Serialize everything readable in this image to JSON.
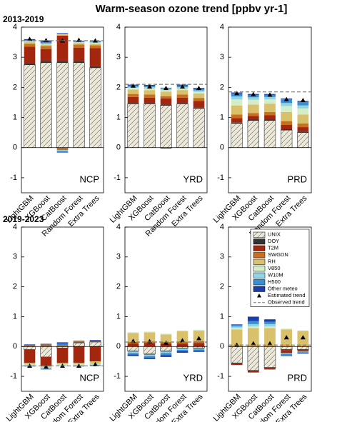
{
  "title": "Warm-season ozone trend [ppbv yr-1]",
  "chart_data": [
    {
      "type": "bar",
      "stacked": true,
      "period": "2013-2019",
      "region": "NCP",
      "categories": [
        "LightGBM",
        "XGBoost",
        "CatBoost",
        "Random Forest",
        "Extra Trees"
      ],
      "ylim": [
        -1.5,
        4
      ],
      "yticks": [
        -1,
        0,
        1,
        2,
        3,
        4
      ],
      "series": [
        {
          "color": "#ece8d8",
          "hatch": true,
          "values": [
            2.75,
            2.82,
            2.82,
            2.82,
            2.65
          ]
        },
        {
          "color": "#333333",
          "values": [
            0.05,
            0.05,
            0.05,
            0.05,
            0.05
          ]
        },
        {
          "color": "#a3260f",
          "values": [
            0.55,
            0.4,
            0.85,
            0.45,
            0.6
          ]
        },
        {
          "color": "#c8701c",
          "values": [
            0.1,
            0.1,
            -0.08,
            0.1,
            0.1
          ]
        },
        {
          "color": "#d9c06b",
          "values": [
            0.05,
            0.05,
            0.05,
            0.05,
            0.05
          ]
        },
        {
          "color": "#d4edc9",
          "values": [
            0.02,
            0.02,
            0.02,
            0.02,
            0.03
          ]
        },
        {
          "color": "#8fd4e2",
          "values": [
            0.02,
            0.02,
            -0.03,
            0.02,
            0.03
          ]
        },
        {
          "color": "#3a8fd3",
          "values": [
            0.03,
            0.05,
            -0.06,
            0.02,
            0.02
          ]
        },
        {
          "color": "#1b3fa8",
          "values": [
            0.03,
            0.05,
            0.02,
            0.02,
            0.02
          ]
        }
      ],
      "estimated": {
        "color": "#000000",
        "values": [
          3.6,
          3.56,
          3.55,
          3.57,
          3.55
        ]
      },
      "observed": {
        "color": "#777777",
        "value": 3.55
      }
    },
    {
      "type": "bar",
      "stacked": true,
      "region": "YRD",
      "categories": [
        "LightGBM",
        "XGBoost",
        "CatBoost",
        "Random Forest",
        "Extra Trees"
      ],
      "ylim": [
        -1.5,
        4
      ],
      "yticks": [
        -1,
        0,
        1,
        2,
        3,
        4
      ],
      "series": [
        {
          "color": "#ece8d8",
          "hatch": true,
          "values": [
            1.45,
            1.45,
            1.4,
            1.45,
            1.3
          ]
        },
        {
          "color": "#333333",
          "values": [
            0.03,
            0.03,
            0.03,
            0.03,
            0.03
          ]
        },
        {
          "color": "#a3260f",
          "values": [
            0.2,
            0.18,
            0.2,
            0.18,
            0.22
          ]
        },
        {
          "color": "#c8701c",
          "values": [
            0.1,
            0.1,
            0.08,
            0.1,
            0.1
          ]
        },
        {
          "color": "#d9c06b",
          "values": [
            0.15,
            0.15,
            0.15,
            0.15,
            0.15
          ]
        },
        {
          "color": "#d4edc9",
          "values": [
            0.05,
            0.05,
            0.05,
            0.05,
            0.05
          ]
        },
        {
          "color": "#8fd4e2",
          "values": [
            0.04,
            0.05,
            0.04,
            0.05,
            0.05
          ]
        },
        {
          "color": "#3a8fd3",
          "values": [
            0.04,
            0.04,
            0.04,
            0.05,
            0.05
          ]
        },
        {
          "color": "#1b3fa8",
          "values": [
            0.03,
            0.03,
            -0.03,
            0.03,
            0.03
          ]
        }
      ],
      "estimated": {
        "color": "#000000",
        "values": [
          2.05,
          2.02,
          1.97,
          2.02,
          1.97
        ]
      },
      "observed": {
        "color": "#777777",
        "value": 2.1
      }
    },
    {
      "type": "bar",
      "stacked": true,
      "region": "PRD",
      "categories": [
        "LightGBM",
        "XGBoost",
        "CatBoost",
        "Random Forest",
        "Extra Trees"
      ],
      "ylim": [
        -1.5,
        4
      ],
      "yticks": [
        -1,
        0,
        1,
        2,
        3,
        4
      ],
      "series": [
        {
          "color": "#ece8d8",
          "hatch": true,
          "values": [
            0.8,
            0.9,
            0.9,
            0.58,
            0.5
          ]
        },
        {
          "color": "#333333",
          "values": [
            0.03,
            0.03,
            0.03,
            0.03,
            0.03
          ]
        },
        {
          "color": "#a3260f",
          "values": [
            0.15,
            0.12,
            0.15,
            0.15,
            0.15
          ]
        },
        {
          "color": "#c8701c",
          "values": [
            0.12,
            0.1,
            0.1,
            0.12,
            0.12
          ]
        },
        {
          "color": "#d9c06b",
          "values": [
            0.3,
            0.28,
            0.28,
            0.3,
            0.3
          ]
        },
        {
          "color": "#d4edc9",
          "values": [
            0.2,
            0.16,
            0.14,
            0.2,
            0.2
          ]
        },
        {
          "color": "#8fd4e2",
          "values": [
            0.1,
            0.08,
            0.08,
            0.1,
            0.1
          ]
        },
        {
          "color": "#3a8fd3",
          "values": [
            0.1,
            0.08,
            0.07,
            0.12,
            0.12
          ]
        },
        {
          "color": "#1b3fa8",
          "values": [
            0.03,
            0.03,
            0.03,
            0.03,
            0.03
          ]
        }
      ],
      "estimated": {
        "color": "#000000",
        "values": [
          1.8,
          1.77,
          1.75,
          1.6,
          1.57
        ]
      },
      "observed": {
        "color": "#777777",
        "value": 1.85
      }
    },
    {
      "type": "bar",
      "stacked": true,
      "period": "2019-2023",
      "region": "NCP",
      "categories": [
        "LightGBM",
        "XGBoost",
        "CatBoost",
        "Random Forest",
        "Extra Trees"
      ],
      "ylim": [
        -1.5,
        4
      ],
      "yticks": [
        -1,
        0,
        1,
        2,
        3,
        4
      ],
      "series": [
        {
          "color": "#ece8d8",
          "hatch": true,
          "values": [
            -0.1,
            -0.35,
            -0.05,
            0.12,
            0.15
          ]
        },
        {
          "color": "#333333",
          "values": [
            0.02,
            0.02,
            0.02,
            0.02,
            0.02
          ]
        },
        {
          "color": "#a3260f",
          "values": [
            -0.45,
            -0.3,
            -0.5,
            -0.55,
            -0.5
          ]
        },
        {
          "color": "#c8701c",
          "values": [
            0.03,
            0.05,
            0.03,
            0.03,
            0.03
          ]
        },
        {
          "color": "#d9c06b",
          "values": [
            -0.05,
            -0.05,
            -0.05,
            -0.05,
            -0.08
          ]
        },
        {
          "color": "#d4edc9",
          "values": [
            -0.02,
            -0.02,
            -0.03,
            -0.02,
            -0.02
          ]
        },
        {
          "color": "#8fd4e2",
          "values": [
            -0.02,
            -0.02,
            -0.03,
            -0.02,
            -0.02
          ]
        },
        {
          "color": "#3a8fd3",
          "values": [
            -0.03,
            -0.03,
            0.05,
            -0.03,
            -0.03
          ]
        },
        {
          "color": "#1b3fa8",
          "values": [
            0.02,
            0.02,
            0.04,
            0.02,
            0.02
          ]
        }
      ],
      "estimated": {
        "color": "#000000",
        "values": [
          -0.65,
          -0.68,
          -0.65,
          -0.65,
          -0.6
        ]
      },
      "observed": {
        "color": "#777777",
        "value": -0.65
      }
    },
    {
      "type": "bar",
      "stacked": true,
      "region": "YRD",
      "categories": [
        "LightGBM",
        "XGBoost",
        "CatBoost",
        "Random Forest",
        "Extra Trees"
      ],
      "ylim": [
        -1.5,
        4
      ],
      "yticks": [
        -1,
        0,
        1,
        2,
        3,
        4
      ],
      "series": [
        {
          "color": "#ece8d8",
          "hatch": true,
          "values": [
            -0.15,
            -0.25,
            -0.15,
            -0.05,
            -0.05
          ]
        },
        {
          "color": "#333333",
          "values": [
            -0.02,
            -0.02,
            -0.02,
            -0.02,
            -0.02
          ]
        },
        {
          "color": "#a3260f",
          "values": [
            0.1,
            0.12,
            0.1,
            0.1,
            0.12
          ]
        },
        {
          "color": "#c8701c",
          "values": [
            0.05,
            0.05,
            0.05,
            0.06,
            0.06
          ]
        },
        {
          "color": "#d9c06b",
          "values": [
            0.3,
            0.3,
            0.25,
            0.35,
            0.35
          ]
        },
        {
          "color": "#d4edc9",
          "values": [
            0.03,
            0.03,
            0.03,
            0.03,
            0.03
          ]
        },
        {
          "color": "#8fd4e2",
          "values": [
            -0.05,
            -0.05,
            -0.05,
            -0.04,
            -0.03
          ]
        },
        {
          "color": "#3a8fd3",
          "values": [
            -0.05,
            -0.05,
            -0.07,
            -0.05,
            -0.04
          ]
        },
        {
          "color": "#1b3fa8",
          "values": [
            -0.05,
            -0.05,
            -0.06,
            -0.05,
            -0.04
          ]
        }
      ],
      "estimated": {
        "color": "#000000",
        "values": [
          0.18,
          0.17,
          0.12,
          0.2,
          0.27
        ]
      },
      "observed": {
        "color": "#777777",
        "value": 0.15
      }
    },
    {
      "type": "bar",
      "stacked": true,
      "region": "PRD",
      "legend": "upper right",
      "categories": [
        "LightGBM",
        "XGBoost",
        "CatBoost",
        "Random Forest",
        "Extra Trees"
      ],
      "ylim": [
        -1.5,
        4
      ],
      "yticks": [
        -1,
        0,
        1,
        2,
        3,
        4
      ],
      "series": [
        {
          "name": "UNIX",
          "color": "#ece8d8",
          "hatch": true,
          "values": [
            -0.55,
            -0.8,
            -0.7,
            -0.1,
            -0.1
          ]
        },
        {
          "name": "DOY",
          "color": "#333333",
          "values": [
            -0.02,
            -0.02,
            -0.02,
            -0.02,
            -0.02
          ]
        },
        {
          "name": "T2M",
          "color": "#a3260f",
          "values": [
            -0.05,
            -0.05,
            -0.05,
            -0.1,
            -0.05
          ]
        },
        {
          "name": "SWGDN",
          "color": "#c8701c",
          "values": [
            0.02,
            0.02,
            0.02,
            0.02,
            0.02
          ]
        },
        {
          "name": "RH",
          "color": "#d9c06b",
          "values": [
            0.55,
            0.6,
            0.6,
            0.55,
            0.5
          ]
        },
        {
          "name": "V850",
          "color": "#d4edc9",
          "values": [
            0.05,
            0.05,
            0.05,
            0.03,
            0.02
          ]
        },
        {
          "name": "W10M",
          "color": "#8fd4e2",
          "values": [
            0.05,
            0.08,
            0.08,
            -0.03,
            -0.02
          ]
        },
        {
          "name": "H500",
          "color": "#3a8fd3",
          "values": [
            0.05,
            0.1,
            0.08,
            -0.05,
            -0.03
          ]
        },
        {
          "name": "Other meteo",
          "color": "#1b3fa8",
          "values": [
            0.02,
            0.15,
            0.08,
            -0.02,
            -0.02
          ]
        }
      ],
      "estimated": {
        "name": "Estimated trend",
        "color": "#000000",
        "values": [
          0.05,
          0.1,
          0.1,
          0.3,
          0.3
        ]
      },
      "observed": {
        "name": "Observed trend",
        "color": "#777777",
        "value": 0.05
      }
    }
  ]
}
